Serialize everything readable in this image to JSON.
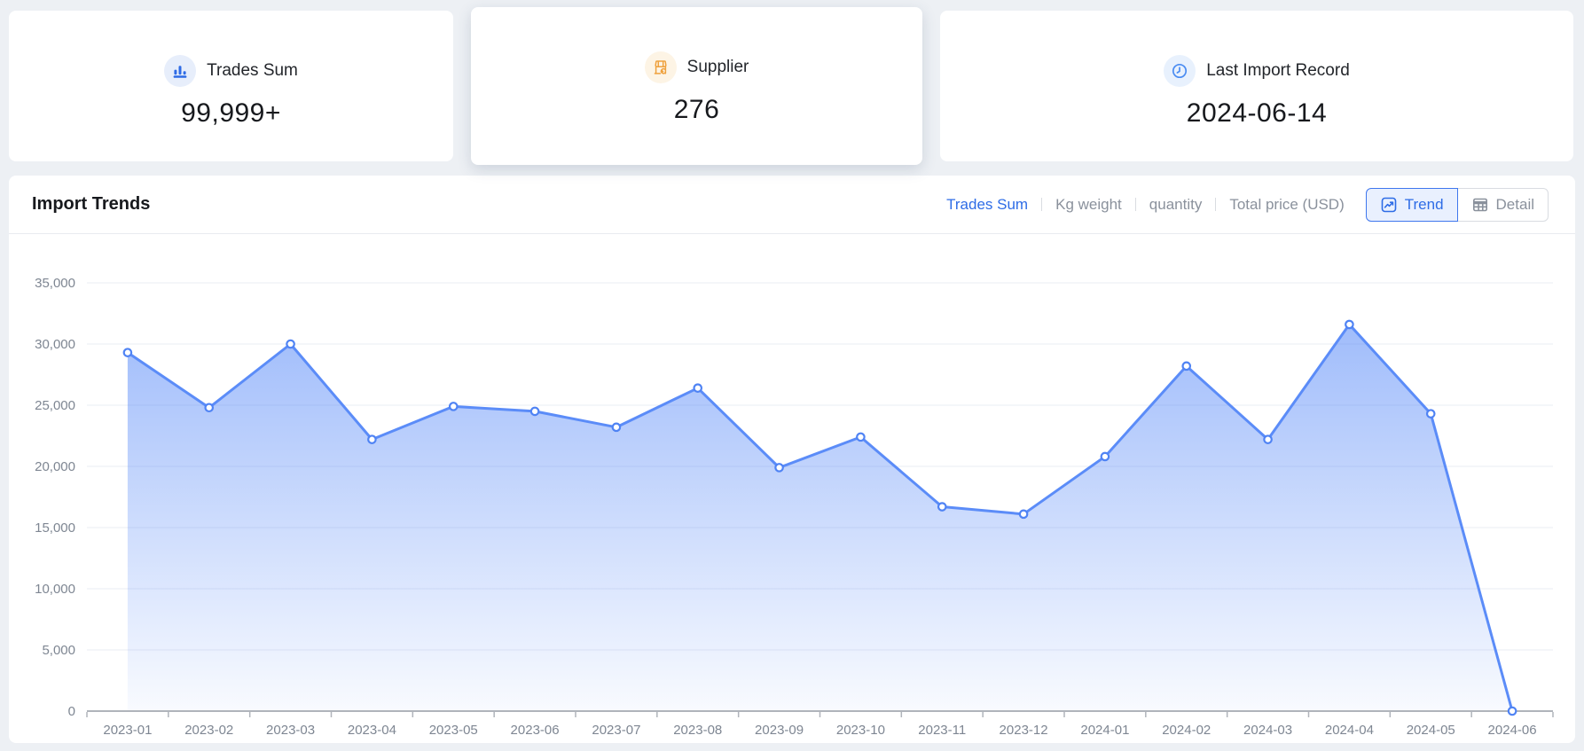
{
  "stat_cards": [
    {
      "label": "Trades Sum",
      "value": "99,999+",
      "icon": "column-chart-icon",
      "icon_color": "#2e6be6",
      "icon_bg": "#e7eefb"
    },
    {
      "label": "Supplier",
      "value": "276",
      "icon": "storefront-icon",
      "icon_color": "#efa13d",
      "icon_bg": "#fdf4e5"
    },
    {
      "label": "Last Import Record",
      "value": "2024-06-14",
      "icon": "clock-icon",
      "icon_color": "#4a8cf2",
      "icon_bg": "#e8f1fd"
    }
  ],
  "trends_panel": {
    "title": "Import Trends",
    "metric_tabs": [
      {
        "label": "Trades Sum",
        "active": true
      },
      {
        "label": "Kg weight",
        "active": false
      },
      {
        "label": "quantity",
        "active": false
      },
      {
        "label": "Total price (USD)",
        "active": false
      }
    ],
    "view_toggle": [
      {
        "label": "Trend",
        "icon": "trend-line-icon",
        "active": true
      },
      {
        "label": "Detail",
        "icon": "table-grid-icon",
        "active": false
      }
    ],
    "colors": {
      "active_blue": "#2e6ce6",
      "inactive_gray": "#8a919c"
    }
  },
  "chart_data": {
    "type": "area",
    "title": "Import Trends",
    "categories": [
      "2023-01",
      "2023-02",
      "2023-03",
      "2023-04",
      "2023-05",
      "2023-06",
      "2023-07",
      "2023-08",
      "2023-09",
      "2023-10",
      "2023-11",
      "2023-12",
      "2024-01",
      "2024-02",
      "2024-03",
      "2024-04",
      "2024-05",
      "2024-06"
    ],
    "series": [
      {
        "name": "Trades Sum",
        "values": [
          29300,
          24800,
          30000,
          22200,
          24900,
          24500,
          23200,
          26400,
          19900,
          22400,
          16700,
          16100,
          20800,
          28200,
          22200,
          31600,
          24300,
          0
        ]
      }
    ],
    "xlabel": "",
    "ylabel": "",
    "ylim": [
      0,
      35000
    ],
    "y_tick_step": 5000,
    "y_tick_labels": [
      "0",
      "5,000",
      "10,000",
      "15,000",
      "20,000",
      "25,000",
      "30,000",
      "35,000"
    ],
    "grid": true,
    "legend": "none",
    "line_color": "#5b8cf8",
    "marker_stroke": "#4f83f4",
    "area_top_color": "rgba(91,140,248,0.58)",
    "area_bottom_color": "rgba(91,140,248,0.04)",
    "grid_color": "#e9ecf3",
    "axis_line_color": "#b0b4bb",
    "axis_label_color": "#7e8692"
  }
}
